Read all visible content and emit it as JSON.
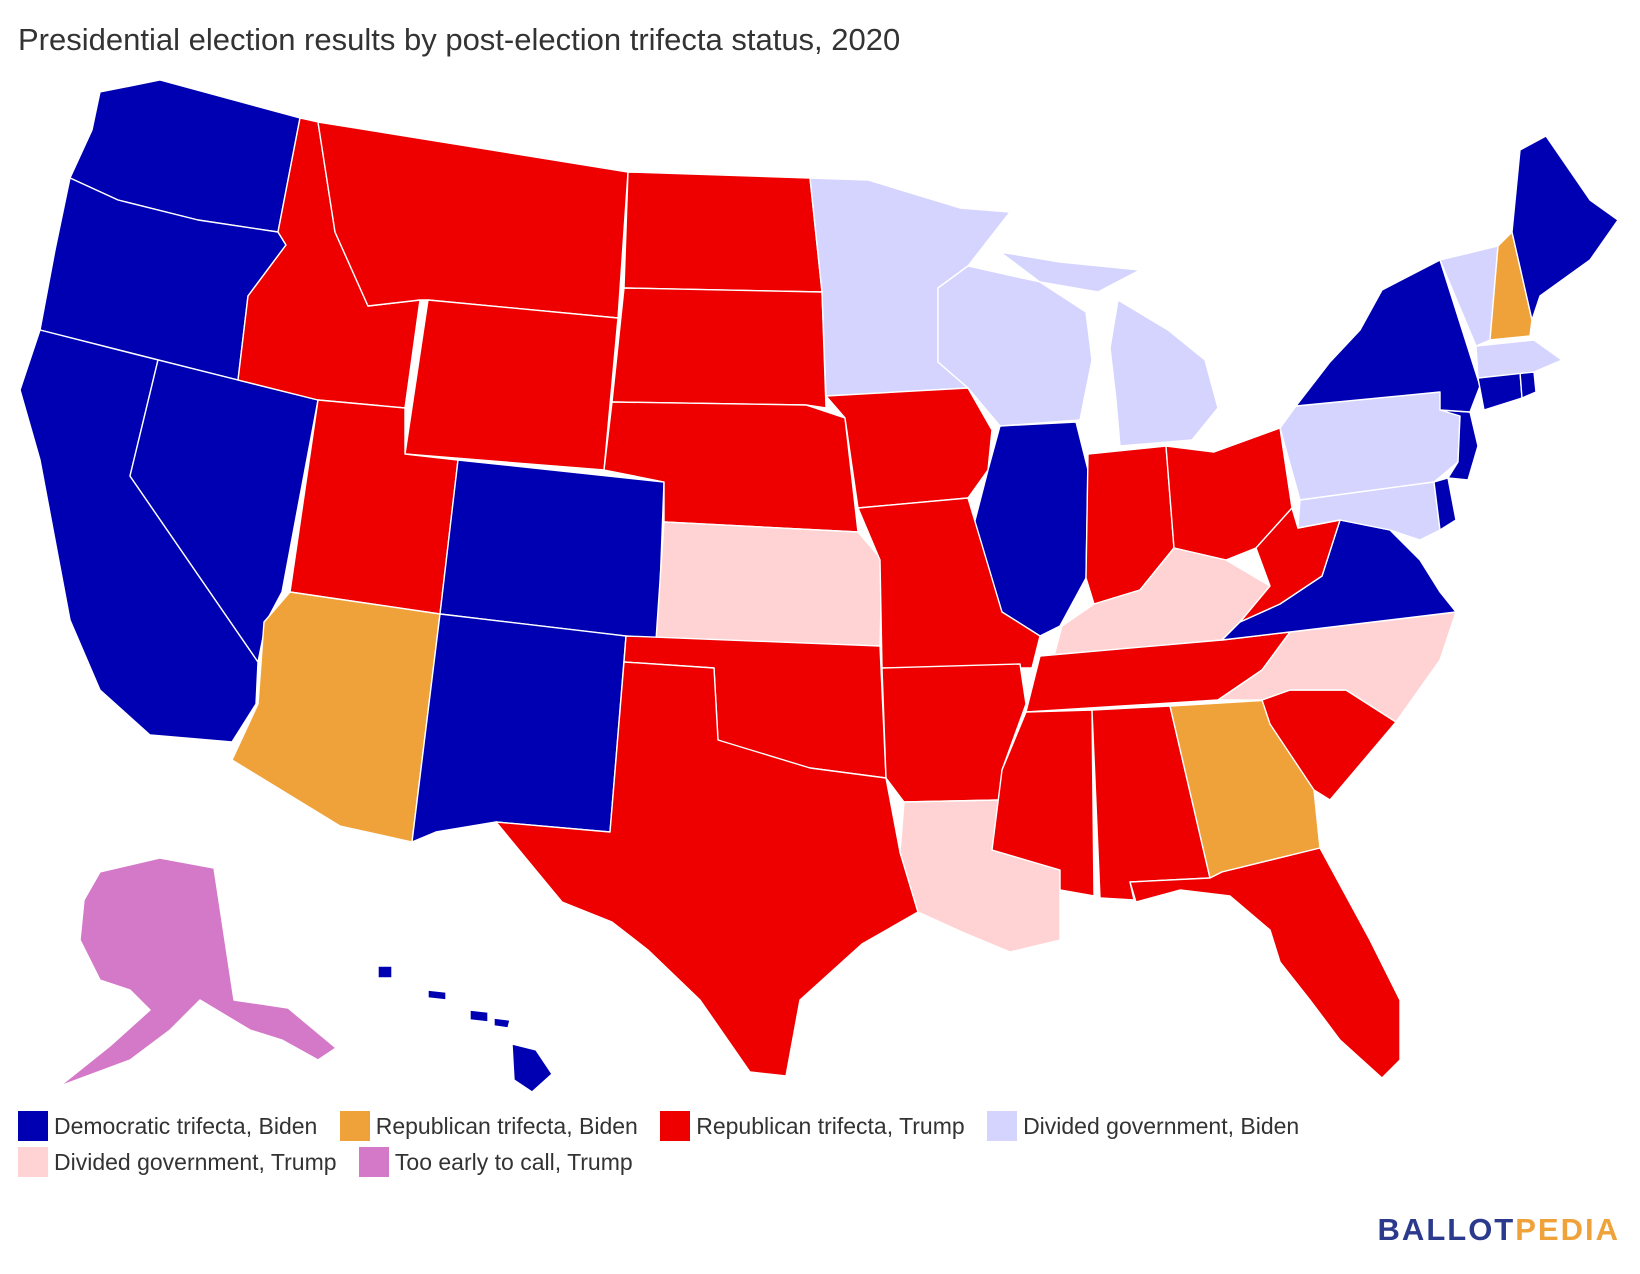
{
  "title": "Presidential election results by post-election trifecta status, 2020",
  "colors": {
    "dem_biden": "#0000b3",
    "rep_biden": "#f0a23a",
    "rep_trump": "#ee0000",
    "div_biden": "#d4d4ff",
    "div_trump": "#ffd3d3",
    "early_trump": "#d478c8"
  },
  "legend": [
    {
      "key": "dem_biden",
      "label": "Democratic trifecta, Biden"
    },
    {
      "key": "rep_biden",
      "label": "Republican trifecta, Biden"
    },
    {
      "key": "rep_trump",
      "label": "Republican trifecta, Trump"
    },
    {
      "key": "div_biden",
      "label": "Divided government, Biden"
    },
    {
      "key": "div_trump",
      "label": "Divided government, Trump"
    },
    {
      "key": "early_trump",
      "label": "Too early to call, Trump"
    }
  ],
  "states": {
    "WA": "dem_biden",
    "OR": "dem_biden",
    "CA": "dem_biden",
    "NV": "dem_biden",
    "CO": "dem_biden",
    "NM": "dem_biden",
    "IL": "dem_biden",
    "VA": "dem_biden",
    "NY": "dem_biden",
    "NJ": "dem_biden",
    "DE": "dem_biden",
    "CT": "dem_biden",
    "RI": "dem_biden",
    "ME": "dem_biden",
    "HI": "dem_biden",
    "AZ": "rep_biden",
    "GA": "rep_biden",
    "NH": "rep_biden",
    "ID": "rep_trump",
    "MT": "rep_trump",
    "WY": "rep_trump",
    "UT": "rep_trump",
    "ND": "rep_trump",
    "SD": "rep_trump",
    "NE": "rep_trump",
    "OK": "rep_trump",
    "TX": "rep_trump",
    "IA": "rep_trump",
    "MO": "rep_trump",
    "AR": "rep_trump",
    "MS": "rep_trump",
    "AL": "rep_trump",
    "TN": "rep_trump",
    "IN": "rep_trump",
    "OH": "rep_trump",
    "WV": "rep_trump",
    "SC": "rep_trump",
    "FL": "rep_trump",
    "MN": "div_biden",
    "WI": "div_biden",
    "MI": "div_biden",
    "PA": "div_biden",
    "MD": "div_biden",
    "VT": "div_biden",
    "MA": "div_biden",
    "KS": "div_trump",
    "KY": "div_trump",
    "LA": "div_trump",
    "NC": "div_trump",
    "AK": "early_trump"
  },
  "logo": {
    "part1": "BALLOT",
    "part2": "PEDIA"
  }
}
